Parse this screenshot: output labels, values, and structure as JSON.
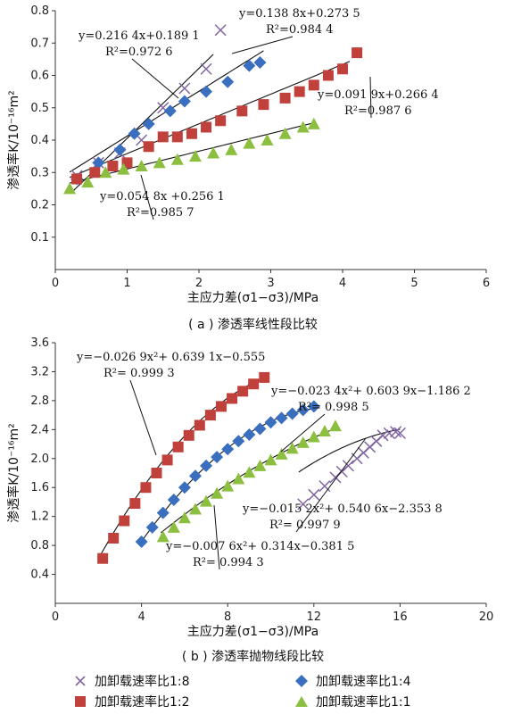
{
  "chart_data": [
    {
      "type": "scatter",
      "panel": "a",
      "caption": "( a ) 渗透率线性段比较",
      "xlabel": "主应力差(σ1−σ3)/MPa",
      "ylabel": "渗透率K/10⁻¹⁶m²",
      "xlim": [
        0,
        6
      ],
      "ylim": [
        0,
        0.8
      ],
      "xticks": [
        0,
        1,
        2,
        3,
        4,
        5,
        6
      ],
      "yticks": [
        0.1,
        0.2,
        0.3,
        0.4,
        0.5,
        0.6,
        0.7,
        0.8
      ],
      "series": [
        {
          "name": "加卸载速率比1:8",
          "marker": "x",
          "color": "#8064a2",
          "x": [
            0.3,
            0.6,
            0.9,
            1.2,
            1.5,
            1.8,
            2.1,
            2.3
          ],
          "y": [
            0.29,
            0.33,
            0.36,
            0.4,
            0.5,
            0.56,
            0.62,
            0.74
          ],
          "fit": {
            "kind": "linear",
            "a": 0.2164,
            "b": 0.1891,
            "x_range": [
              0.25,
              2.2
            ]
          }
        },
        {
          "name": "加卸载速率比1:4",
          "marker": "diamond",
          "color": "#3a6ebe",
          "x": [
            0.3,
            0.6,
            0.9,
            1.1,
            1.3,
            1.6,
            1.8,
            2.1,
            2.4,
            2.7,
            2.85
          ],
          "y": [
            0.28,
            0.33,
            0.37,
            0.42,
            0.45,
            0.49,
            0.52,
            0.55,
            0.58,
            0.63,
            0.64
          ],
          "fit": {
            "kind": "linear",
            "a": 0.1388,
            "b": 0.2735,
            "x_range": [
              0.2,
              2.9
            ]
          }
        },
        {
          "name": "加卸载速率比1:2",
          "marker": "square",
          "color": "#c0413b",
          "x": [
            0.3,
            0.55,
            0.8,
            1.0,
            1.3,
            1.5,
            1.7,
            1.9,
            2.1,
            2.3,
            2.6,
            2.9,
            3.2,
            3.4,
            3.6,
            3.8,
            4.0,
            4.2
          ],
          "y": [
            0.28,
            0.3,
            0.32,
            0.33,
            0.38,
            0.41,
            0.41,
            0.42,
            0.44,
            0.46,
            0.49,
            0.51,
            0.53,
            0.55,
            0.57,
            0.6,
            0.62,
            0.67
          ],
          "fit": {
            "kind": "linear",
            "a": 0.0919,
            "b": 0.2664,
            "x_range": [
              0.2,
              4.1
            ]
          }
        },
        {
          "name": "加卸载速率比1:1",
          "marker": "triangle",
          "color": "#8cbf3f",
          "x": [
            0.2,
            0.45,
            0.7,
            0.95,
            1.2,
            1.45,
            1.7,
            1.95,
            2.2,
            2.45,
            2.7,
            2.95,
            3.2,
            3.45,
            3.6
          ],
          "y": [
            0.25,
            0.27,
            0.3,
            0.31,
            0.32,
            0.33,
            0.34,
            0.35,
            0.36,
            0.37,
            0.39,
            0.4,
            0.42,
            0.44,
            0.45
          ],
          "fit": {
            "kind": "linear",
            "a": 0.0548,
            "b": 0.2561,
            "x_range": [
              0.2,
              3.6
            ]
          }
        }
      ],
      "annotations": [
        {
          "series": "加卸载速率比1:8",
          "lines": [
            "y=0.216 4x+0.189 1",
            "R²=0.972 6"
          ]
        },
        {
          "series": "加卸载速率比1:4",
          "lines": [
            "y=0.138 8x+0.273 5",
            "R²=0.984 4"
          ]
        },
        {
          "series": "加卸载速率比1:2",
          "lines": [
            "y=0.091 9x+0.266 4",
            "R²=0.987 6"
          ]
        },
        {
          "series": "加卸载速率比1:1",
          "lines": [
            "y=0.054 8x +0.256 1",
            "R²=0.985 7"
          ]
        }
      ]
    },
    {
      "type": "scatter",
      "panel": "b",
      "caption": "( b ) 渗透率抛物线段比较",
      "xlabel": "主应力差(σ1−σ3)/MPa",
      "ylabel": "渗透率K/10⁻¹⁶m²",
      "xlim": [
        0,
        20
      ],
      "ylim": [
        0,
        3.6
      ],
      "xticks": [
        0,
        4,
        8,
        12,
        16,
        20
      ],
      "yticks": [
        0.4,
        0.8,
        1.2,
        1.6,
        2.0,
        2.4,
        2.8,
        3.2,
        3.6
      ],
      "series": [
        {
          "name": "加卸载速率比1:8",
          "marker": "x",
          "color": "#8064a2",
          "x": [
            11.5,
            12.0,
            12.5,
            13.0,
            13.3,
            13.6,
            14.0,
            14.3,
            14.6,
            14.9,
            15.2,
            15.5,
            15.8,
            16.0
          ],
          "y": [
            1.37,
            1.5,
            1.62,
            1.74,
            1.82,
            1.9,
            2.0,
            2.08,
            2.16,
            2.24,
            2.32,
            2.35,
            2.37,
            2.35
          ],
          "fit": {
            "kind": "quadratic",
            "a": -0.0152,
            "b": 0.5406,
            "c": -2.3538,
            "x_range": [
              11.3,
              16.0
            ]
          }
        },
        {
          "name": "加卸载速率比1:4",
          "marker": "diamond",
          "color": "#3a6ebe",
          "x": [
            4.0,
            4.5,
            5.0,
            5.5,
            6.0,
            6.5,
            7.0,
            7.5,
            8.0,
            8.5,
            9.0,
            9.5,
            10.0,
            10.5,
            11.0,
            11.5,
            12.0
          ],
          "y": [
            0.85,
            1.05,
            1.25,
            1.43,
            1.6,
            1.76,
            1.9,
            2.02,
            2.13,
            2.24,
            2.33,
            2.41,
            2.5,
            2.56,
            2.62,
            2.67,
            2.72
          ],
          "fit": {
            "kind": "quadratic",
            "a": -0.0234,
            "b": 0.6039,
            "c": -1.1862,
            "x_range": [
              4.1,
              12.1
            ]
          }
        },
        {
          "name": "加卸载速率比1:2",
          "marker": "square",
          "color": "#c0413b",
          "x": [
            2.2,
            2.7,
            3.2,
            3.7,
            4.2,
            4.7,
            5.2,
            5.7,
            6.2,
            6.7,
            7.2,
            7.7,
            8.2,
            8.7,
            9.2,
            9.7
          ],
          "y": [
            0.62,
            0.9,
            1.14,
            1.38,
            1.6,
            1.8,
            1.98,
            2.16,
            2.32,
            2.46,
            2.6,
            2.72,
            2.83,
            2.93,
            3.03,
            3.12
          ],
          "fit": {
            "kind": "quadratic",
            "a": -0.0269,
            "b": 0.6391,
            "c": -0.555,
            "x_range": [
              2.0,
              9.7
            ]
          }
        },
        {
          "name": "加卸载速率比1:1",
          "marker": "triangle",
          "color": "#8cbf3f",
          "x": [
            5.0,
            5.5,
            6.0,
            6.5,
            7.0,
            7.5,
            8.0,
            8.5,
            9.0,
            9.5,
            10.0,
            10.5,
            11.0,
            11.5,
            12.0,
            12.5,
            13.0
          ],
          "y": [
            0.92,
            1.05,
            1.18,
            1.3,
            1.41,
            1.52,
            1.62,
            1.72,
            1.81,
            1.9,
            1.98,
            2.06,
            2.14,
            2.22,
            2.3,
            2.38,
            2.45
          ],
          "fit": {
            "kind": "quadratic",
            "a": -0.0076,
            "b": 0.314,
            "c": -0.3815,
            "x_range": [
              4.9,
              13.0
            ]
          }
        }
      ],
      "annotations": [
        {
          "series": "加卸载速率比1:2",
          "lines": [
            "y=−0.026 9x²+ 0.639 1x−0.555",
            "R²= 0.999 3"
          ]
        },
        {
          "series": "加卸载速率比1:4",
          "lines": [
            "y=−0.023 4x²+ 0.603 9x−1.186 2",
            "R²= 0.998 5"
          ]
        },
        {
          "series": "加卸载速率比1:8",
          "lines": [
            "y=−0.015 2x²+ 0.540 6x−2.353 8",
            "R²= 0.997 9"
          ]
        },
        {
          "series": "加卸载速率比1:1",
          "lines": [
            "y=−0.007 6x²+ 0.314x−0.381 5",
            "R²= 0.994 3"
          ]
        }
      ]
    }
  ],
  "legend": [
    {
      "label": "加卸载速率比1:8",
      "marker": "x",
      "color": "#8064a2"
    },
    {
      "label": "加卸载速率比1:4",
      "marker": "diamond",
      "color": "#3a6ebe"
    },
    {
      "label": "加卸载速率比1:2",
      "marker": "square",
      "color": "#c0413b"
    },
    {
      "label": "加卸载速率比1:1",
      "marker": "triangle",
      "color": "#8cbf3f"
    }
  ]
}
